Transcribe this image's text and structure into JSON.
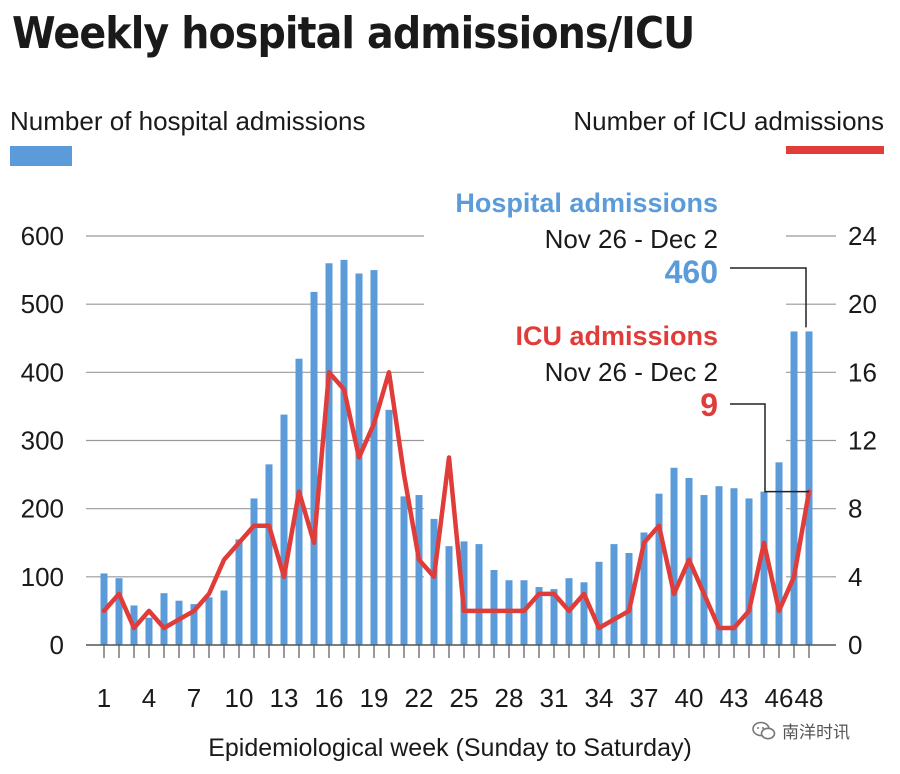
{
  "colors": {
    "hospital": "#5b9bd9",
    "icu": "#e03c39",
    "grid": "#999999",
    "text": "#1a1a1a"
  },
  "watermark": {
    "icon": "wechat-logo-icon",
    "text": "南洋时讯"
  },
  "chart_data": {
    "type": "bar+line",
    "title": "Weekly hospital admissions/ICU",
    "xlabel": "Epidemiological week (Sunday to Saturday)",
    "legend": {
      "left": "Number of hospital admissions",
      "right": "Number of ICU admissions",
      "placement": "top"
    },
    "x": [
      1,
      2,
      3,
      4,
      5,
      6,
      7,
      8,
      9,
      10,
      11,
      12,
      13,
      14,
      15,
      16,
      17,
      18,
      19,
      20,
      21,
      22,
      23,
      24,
      25,
      26,
      27,
      28,
      29,
      30,
      31,
      32,
      33,
      34,
      35,
      36,
      37,
      38,
      39,
      40,
      41,
      42,
      43,
      44,
      45,
      46,
      47,
      48
    ],
    "x_tick_labels": [
      "1",
      "4",
      "7",
      "10",
      "13",
      "16",
      "19",
      "22",
      "25",
      "28",
      "31",
      "34",
      "37",
      "40",
      "43",
      "46",
      "48"
    ],
    "y_left": {
      "label": "Number of hospital admissions",
      "range": [
        0,
        600
      ],
      "ticks": [
        0,
        100,
        200,
        300,
        400,
        500,
        600
      ]
    },
    "y_right": {
      "label": "Number of ICU admissions",
      "range": [
        0,
        24
      ],
      "ticks": [
        0,
        4,
        8,
        12,
        16,
        20,
        24
      ]
    },
    "grid": true,
    "series": [
      {
        "name": "Number of hospital admissions",
        "type": "bar",
        "axis": "left",
        "values": [
          105,
          98,
          58,
          40,
          76,
          65,
          60,
          70,
          80,
          155,
          215,
          265,
          338,
          420,
          518,
          560,
          565,
          545,
          550,
          345,
          218,
          220,
          185,
          145,
          152,
          148,
          110,
          95,
          95,
          85,
          82,
          98,
          92,
          122,
          148,
          135,
          165,
          222,
          260,
          245,
          220,
          233,
          230,
          215,
          225,
          268,
          460,
          460
        ]
      },
      {
        "name": "Number of ICU admissions",
        "type": "line",
        "axis": "right",
        "values": [
          2,
          3,
          1,
          2,
          1,
          1.5,
          2,
          3,
          5,
          6,
          7,
          7,
          4,
          9,
          6,
          16,
          15,
          11,
          13,
          16,
          10,
          5,
          4,
          11,
          2,
          2,
          2,
          2,
          2,
          3,
          3,
          2,
          3,
          1,
          1.5,
          2,
          6,
          7,
          3,
          5,
          3,
          1,
          1,
          2,
          6,
          2,
          4,
          9
        ]
      }
    ],
    "annotations": [
      {
        "heading": "Hospital admissions",
        "period": "Nov 26 - Dec 2",
        "value": "460",
        "series": "hospital"
      },
      {
        "heading": "ICU admissions",
        "period": "Nov 26 - Dec 2",
        "value": "9",
        "series": "icu"
      }
    ]
  }
}
